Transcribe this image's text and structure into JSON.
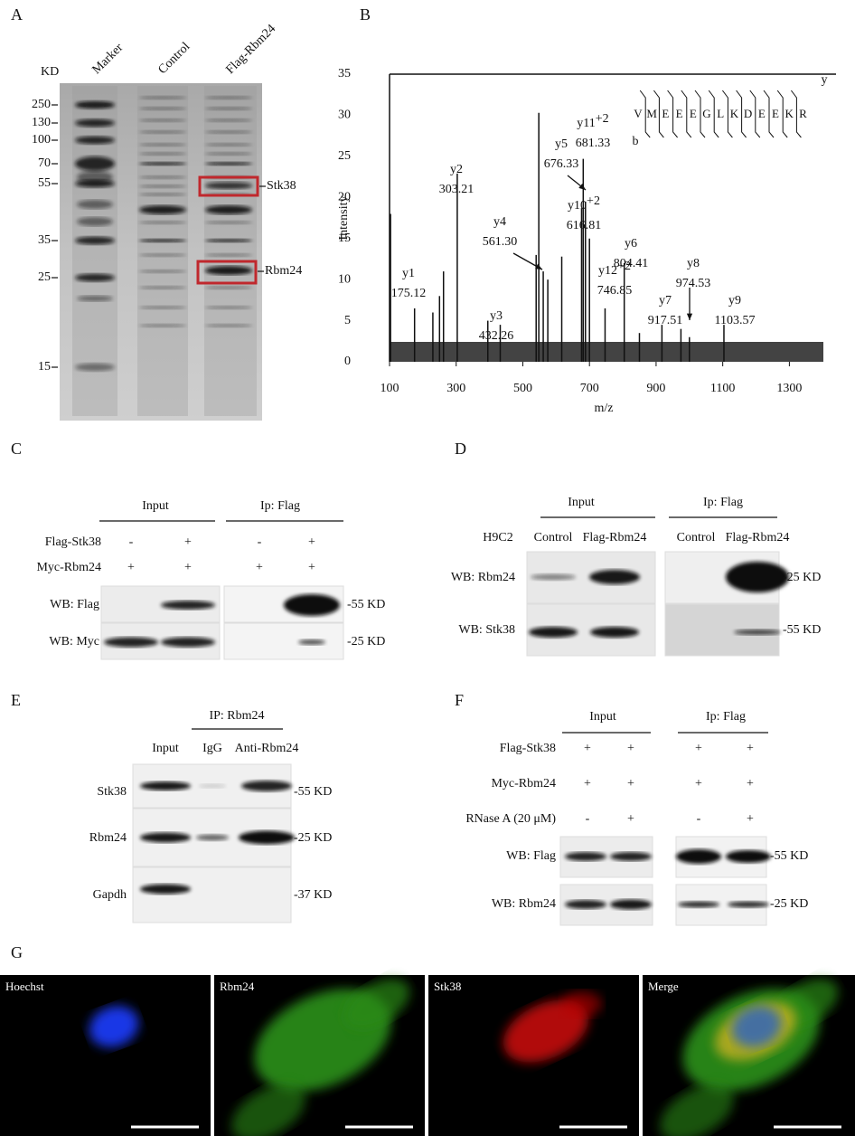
{
  "panel_a": {
    "letter": "A",
    "unit": "KD",
    "lanes": [
      "Marker",
      "Control",
      "Flag-Rbm24"
    ],
    "markers": [
      250,
      130,
      100,
      70,
      55,
      35,
      25,
      15
    ],
    "boxes": [
      "Stk38",
      "Rbm24"
    ]
  },
  "panel_b": {
    "letter": "B",
    "type": "spectrum",
    "xlabel": "m/z",
    "ylabel": "Intensity",
    "xlim": [
      100,
      1440
    ],
    "xticks": [
      100,
      300,
      500,
      700,
      900,
      1100,
      1300
    ],
    "ylim": [
      0,
      35
    ],
    "yticks": [
      0,
      5,
      10,
      15,
      20,
      25,
      30,
      35
    ],
    "peaks": [
      {
        "ion": "y1",
        "mz": 175.12,
        "mz_label": "175.12",
        "intensity": 6.5
      },
      {
        "ion": "y2",
        "mz": 303.21,
        "mz_label": "303.21",
        "intensity": 22.9
      },
      {
        "ion": "y3",
        "mz": 432.26,
        "mz_label": "432.26",
        "intensity": 4.5
      },
      {
        "ion": "y4",
        "mz": 561.3,
        "mz_label": "561.30",
        "intensity": 11
      },
      {
        "ion": "y10",
        "charge": "+2",
        "mz": 616.81,
        "mz_label": "616.81",
        "intensity": 12.8
      },
      {
        "ion": "y5",
        "mz": 676.33,
        "mz_label": "676.33",
        "intensity": 18.7
      },
      {
        "ion": "y11",
        "charge": "+2",
        "mz": 681.33,
        "mz_label": "681.33",
        "intensity": 24.7
      },
      {
        "ion": "y12",
        "charge": "+2",
        "mz": 746.85,
        "mz_label": "746.85",
        "intensity": 6.5
      },
      {
        "ion": "y6",
        "mz": 804.41,
        "mz_label": "804.41",
        "intensity": 12
      },
      {
        "ion": "y7",
        "mz": 917.51,
        "mz_label": "917.51",
        "intensity": 4.5
      },
      {
        "ion": "y8",
        "mz": 974.53,
        "mz_label": "974.53",
        "intensity": 4
      },
      {
        "ion": "y9",
        "mz": 1103.57,
        "mz_label": "1103.57",
        "intensity": 4.5
      }
    ],
    "other_peaks": [
      {
        "mz": 103,
        "intensity": 18
      },
      {
        "mz": 250,
        "intensity": 8
      },
      {
        "mz": 262,
        "intensity": 11
      },
      {
        "mz": 548,
        "intensity": 30.3
      },
      {
        "mz": 540,
        "intensity": 13
      },
      {
        "mz": 575,
        "intensity": 10
      },
      {
        "mz": 688,
        "intensity": 19.5
      },
      {
        "mz": 700,
        "intensity": 15
      },
      {
        "mz": 230,
        "intensity": 6
      },
      {
        "mz": 395,
        "intensity": 5
      },
      {
        "mz": 850,
        "intensity": 3.5
      },
      {
        "mz": 1000,
        "intensity": 3
      }
    ],
    "sequence": [
      "V",
      "M",
      "E",
      "E",
      "E",
      "G",
      "L",
      "K",
      "D",
      "E",
      "E",
      "K",
      "R"
    ],
    "y_series": "y",
    "b_series": "b"
  },
  "panel_c": {
    "letter": "C",
    "groups": [
      "Input",
      "Ip:  Flag"
    ],
    "rows": [
      {
        "label": "Flag-Stk38",
        "signs": [
          "-",
          "+",
          "-",
          "+"
        ]
      },
      {
        "label": "Myc-Rbm24",
        "signs": [
          "+",
          "+",
          "+",
          "+"
        ]
      }
    ],
    "blots": [
      {
        "label": "WB: Flag",
        "size": "-55 KD"
      },
      {
        "label": "WB: Myc",
        "size": "-25 KD"
      }
    ]
  },
  "panel_d": {
    "letter": "D",
    "groups": [
      "Input",
      "Ip:  Flag"
    ],
    "cell": "H9C2",
    "lanes": [
      "Control",
      "Flag-Rbm24",
      "Control",
      "Flag-Rbm24"
    ],
    "blots": [
      {
        "label": "WB: Rbm24",
        "size": "-25 KD"
      },
      {
        "label": "WB: Stk38",
        "size": "-55 KD"
      }
    ]
  },
  "panel_e": {
    "letter": "E",
    "group": "IP: Rbm24",
    "lanes": [
      "Input",
      "IgG",
      "Anti-Rbm24"
    ],
    "blots": [
      {
        "label": "Stk38",
        "size": "-55 KD"
      },
      {
        "label": "Rbm24",
        "size": "-25 KD"
      },
      {
        "label": "Gapdh",
        "size": "-37 KD"
      }
    ]
  },
  "panel_f": {
    "letter": "F",
    "groups": [
      "Input",
      "Ip: Flag"
    ],
    "rows": [
      {
        "label": "Flag-Stk38",
        "signs": [
          "+",
          "+",
          "+",
          "+"
        ]
      },
      {
        "label": "Myc-Rbm24",
        "signs": [
          "+",
          "+",
          "+",
          "+"
        ]
      },
      {
        "label": "RNase A (20 μM)",
        "signs": [
          "-",
          "+",
          "-",
          "+"
        ]
      }
    ],
    "blots": [
      {
        "label": "WB: Flag",
        "size": "-55 KD"
      },
      {
        "label": "WB: Rbm24",
        "size": "-25 KD"
      }
    ]
  },
  "panel_g": {
    "letter": "G",
    "images": [
      "Hoechst",
      "Rbm24",
      "Stk38",
      "Merge"
    ]
  }
}
